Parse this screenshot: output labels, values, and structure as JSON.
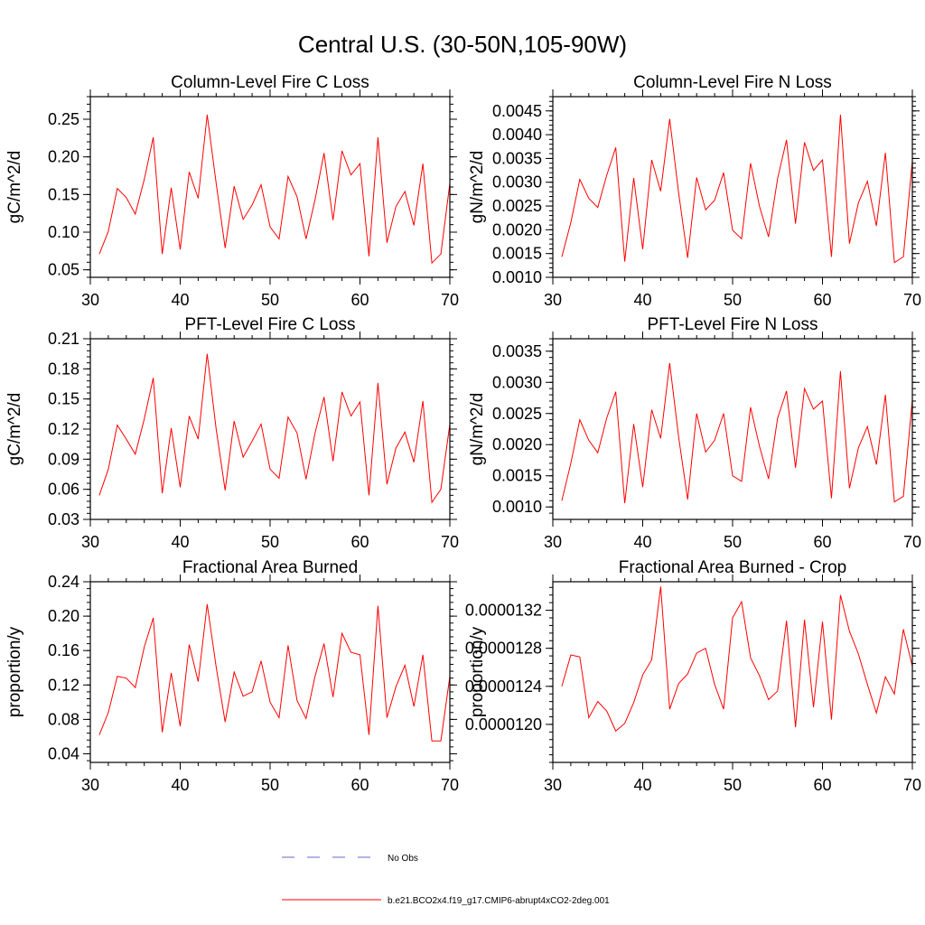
{
  "figure": {
    "title": "Central U.S. (30-50N,105-90W)",
    "line_color": "#ff0000",
    "obs_color": "#6666cc"
  },
  "legend": {
    "obs_label": "No Obs",
    "model_label": "b.e21.BCO2x4.f19_g17.CMIP6-abrupt4xCO2-2deg.001"
  },
  "chart_data": [
    {
      "type": "line",
      "title": "Column-Level Fire C Loss",
      "ylabel": "gC/m^2/d",
      "xlim": [
        30,
        70
      ],
      "ylim": [
        0.04,
        0.28
      ],
      "xticks": [
        "30",
        "40",
        "50",
        "60",
        "70"
      ],
      "yticks": [
        0.05,
        0.1,
        0.15,
        0.2,
        0.25
      ],
      "ytick_labels": [
        "0.05",
        "0.10",
        "0.15",
        "0.20",
        "0.25"
      ],
      "series": [
        {
          "x": [
            31,
            32,
            33,
            34,
            35,
            36,
            37,
            38,
            39,
            40,
            41,
            42,
            43,
            44,
            45,
            46,
            47,
            48,
            49,
            50,
            51,
            52,
            53,
            54,
            55,
            56,
            57,
            58,
            59,
            60,
            61,
            62,
            63,
            64,
            65,
            66,
            67,
            68,
            69,
            70
          ],
          "values": [
            0.071,
            0.101,
            0.158,
            0.146,
            0.124,
            0.17,
            0.226,
            0.071,
            0.159,
            0.077,
            0.18,
            0.145,
            0.256,
            0.165,
            0.079,
            0.161,
            0.117,
            0.136,
            0.163,
            0.107,
            0.091,
            0.174,
            0.147,
            0.091,
            0.143,
            0.205,
            0.116,
            0.208,
            0.176,
            0.191,
            0.068,
            0.226,
            0.086,
            0.134,
            0.154,
            0.109,
            0.191,
            0.059,
            0.071,
            0.165
          ]
        }
      ]
    },
    {
      "type": "line",
      "title": "Column-Level Fire N Loss",
      "ylabel": "gN/m^2/d",
      "xlim": [
        30,
        70
      ],
      "ylim": [
        0.001,
        0.0048
      ],
      "xticks": [
        "30",
        "40",
        "50",
        "60",
        "70"
      ],
      "yticks": [
        0.001,
        0.0015,
        0.002,
        0.0025,
        0.003,
        0.0035,
        0.004,
        0.0045
      ],
      "ytick_labels": [
        "0.0010",
        "0.0015",
        "0.0020",
        "0.0025",
        "0.0030",
        "0.0035",
        "0.0040",
        "0.0045"
      ],
      "series": [
        {
          "x": [
            31,
            32,
            33,
            34,
            35,
            36,
            37,
            38,
            39,
            40,
            41,
            42,
            43,
            44,
            45,
            46,
            47,
            48,
            49,
            50,
            51,
            52,
            53,
            54,
            55,
            56,
            57,
            58,
            59,
            60,
            61,
            62,
            63,
            64,
            65,
            66,
            67,
            68,
            69,
            70
          ],
          "values": [
            0.00143,
            0.00215,
            0.00306,
            0.00266,
            0.00247,
            0.00315,
            0.00373,
            0.00133,
            0.00309,
            0.00159,
            0.00347,
            0.00281,
            0.00433,
            0.00277,
            0.00141,
            0.0031,
            0.00242,
            0.00262,
            0.0032,
            0.00199,
            0.00181,
            0.0034,
            0.00249,
            0.00185,
            0.00307,
            0.00389,
            0.00213,
            0.00384,
            0.00325,
            0.00347,
            0.00143,
            0.00442,
            0.00171,
            0.00257,
            0.00302,
            0.00208,
            0.00362,
            0.00131,
            0.00143,
            0.00345
          ]
        }
      ]
    },
    {
      "type": "line",
      "title": "PFT-Level Fire C Loss",
      "ylabel": "gC/m^2/d",
      "xlim": [
        30,
        70
      ],
      "ylim": [
        0.03,
        0.21
      ],
      "xticks": [
        "30",
        "40",
        "50",
        "60",
        "70"
      ],
      "yticks": [
        0.03,
        0.06,
        0.09,
        0.12,
        0.15,
        0.18,
        0.21
      ],
      "ytick_labels": [
        "0.03",
        "0.06",
        "0.09",
        "0.12",
        "0.15",
        "0.18",
        "0.21"
      ],
      "series": [
        {
          "x": [
            31,
            32,
            33,
            34,
            35,
            36,
            37,
            38,
            39,
            40,
            41,
            42,
            43,
            44,
            45,
            46,
            47,
            48,
            49,
            50,
            51,
            52,
            53,
            54,
            55,
            56,
            57,
            58,
            59,
            60,
            61,
            62,
            63,
            64,
            65,
            66,
            67,
            68,
            69,
            70
          ],
          "values": [
            0.054,
            0.08,
            0.124,
            0.11,
            0.095,
            0.13,
            0.171,
            0.056,
            0.121,
            0.062,
            0.133,
            0.11,
            0.195,
            0.12,
            0.059,
            0.128,
            0.092,
            0.108,
            0.125,
            0.08,
            0.071,
            0.132,
            0.116,
            0.07,
            0.116,
            0.152,
            0.088,
            0.157,
            0.133,
            0.147,
            0.054,
            0.166,
            0.065,
            0.101,
            0.117,
            0.087,
            0.148,
            0.047,
            0.06,
            0.125
          ]
        }
      ]
    },
    {
      "type": "line",
      "title": "PFT-Level Fire N Loss",
      "ylabel": "gN/m^2/d",
      "xlim": [
        30,
        70
      ],
      "ylim": [
        0.0008,
        0.0037
      ],
      "xticks": [
        "30",
        "40",
        "50",
        "60",
        "70"
      ],
      "yticks": [
        0.001,
        0.0015,
        0.002,
        0.0025,
        0.003,
        0.0035
      ],
      "ytick_labels": [
        "0.0010",
        "0.0015",
        "0.0020",
        "0.0025",
        "0.0030",
        "0.0035"
      ],
      "series": [
        {
          "x": [
            31,
            32,
            33,
            34,
            35,
            36,
            37,
            38,
            39,
            40,
            41,
            42,
            43,
            44,
            45,
            46,
            47,
            48,
            49,
            50,
            51,
            52,
            53,
            54,
            55,
            56,
            57,
            58,
            59,
            60,
            61,
            62,
            63,
            64,
            65,
            66,
            67,
            68,
            69,
            70
          ],
          "values": [
            0.0011,
            0.0017,
            0.0024,
            0.00207,
            0.00187,
            0.00243,
            0.00285,
            0.00106,
            0.00233,
            0.00132,
            0.00256,
            0.0021,
            0.00331,
            0.00212,
            0.00112,
            0.0025,
            0.00188,
            0.00207,
            0.0025,
            0.0015,
            0.00141,
            0.0026,
            0.00197,
            0.00145,
            0.00242,
            0.00286,
            0.00163,
            0.0029,
            0.00257,
            0.0027,
            0.00114,
            0.00318,
            0.0013,
            0.00195,
            0.00229,
            0.00168,
            0.0028,
            0.00108,
            0.00117,
            0.00272
          ]
        }
      ]
    },
    {
      "type": "line",
      "title": "Fractional Area Burned",
      "ylabel": "proportion/y",
      "xlim": [
        30,
        70
      ],
      "ylim": [
        0.03,
        0.24
      ],
      "xticks": [
        "30",
        "40",
        "50",
        "60",
        "70"
      ],
      "yticks": [
        0.04,
        0.08,
        0.12,
        0.16,
        0.2,
        0.24
      ],
      "ytick_labels": [
        "0.04",
        "0.08",
        "0.12",
        "0.16",
        "0.20",
        "0.24"
      ],
      "series": [
        {
          "x": [
            31,
            32,
            33,
            34,
            35,
            36,
            37,
            38,
            39,
            40,
            41,
            42,
            43,
            44,
            45,
            46,
            47,
            48,
            49,
            50,
            51,
            52,
            53,
            54,
            55,
            56,
            57,
            58,
            59,
            60,
            61,
            62,
            63,
            64,
            65,
            66,
            67,
            68,
            69,
            70
          ],
          "values": [
            0.062,
            0.088,
            0.13,
            0.128,
            0.117,
            0.164,
            0.198,
            0.065,
            0.134,
            0.072,
            0.167,
            0.124,
            0.214,
            0.141,
            0.077,
            0.135,
            0.107,
            0.112,
            0.148,
            0.1,
            0.082,
            0.166,
            0.102,
            0.081,
            0.13,
            0.168,
            0.106,
            0.18,
            0.158,
            0.155,
            0.062,
            0.212,
            0.082,
            0.118,
            0.143,
            0.095,
            0.155,
            0.055,
            0.055,
            0.13
          ]
        }
      ]
    },
    {
      "type": "line",
      "title": "Fractional Area Burned - Crop",
      "ylabel": "proportion/y",
      "xlim": [
        30,
        70
      ],
      "ylim": [
        1.16e-05,
        1.35e-05
      ],
      "xticks": [
        "30",
        "40",
        "50",
        "60",
        "70"
      ],
      "yticks": [
        1.2e-05,
        1.24e-05,
        1.28e-05,
        1.32e-05
      ],
      "ytick_labels": [
        "0.0000120",
        "0.0000124",
        "0.0000128",
        "0.0000132"
      ],
      "series": [
        {
          "x": [
            31,
            32,
            33,
            34,
            35,
            36,
            37,
            38,
            39,
            40,
            41,
            42,
            43,
            44,
            45,
            46,
            47,
            48,
            49,
            50,
            51,
            52,
            53,
            54,
            55,
            56,
            57,
            58,
            59,
            60,
            61,
            62,
            63,
            64,
            65,
            66,
            67,
            68,
            69,
            70
          ],
          "values": [
            1.24e-05,
            1.273e-05,
            1.271e-05,
            1.207e-05,
            1.224e-05,
            1.214e-05,
            1.193e-05,
            1.201e-05,
            1.223e-05,
            1.252e-05,
            1.268e-05,
            1.345e-05,
            1.216e-05,
            1.243e-05,
            1.253e-05,
            1.275e-05,
            1.28e-05,
            1.242e-05,
            1.216e-05,
            1.312e-05,
            1.329e-05,
            1.27e-05,
            1.251e-05,
            1.226e-05,
            1.235e-05,
            1.309e-05,
            1.197e-05,
            1.31e-05,
            1.218e-05,
            1.308e-05,
            1.205e-05,
            1.336e-05,
            1.298e-05,
            1.274e-05,
            1.242e-05,
            1.212e-05,
            1.25e-05,
            1.232e-05,
            1.3e-05,
            1.261e-05
          ]
        }
      ]
    }
  ]
}
